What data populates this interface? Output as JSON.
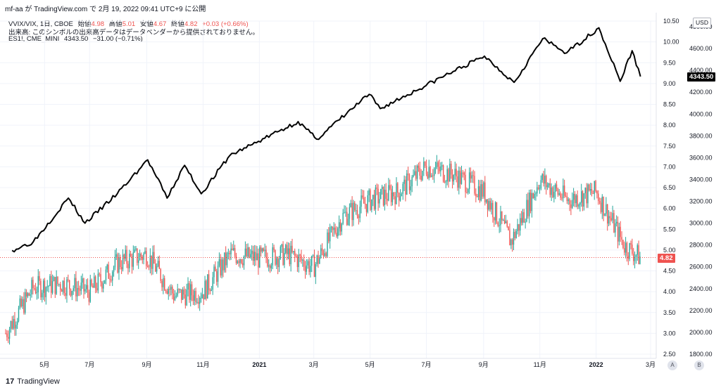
{
  "header": {
    "author": "mf-aa",
    "published_line": "mf-aa が TradingView.com で 2月 19, 2022 09:41 UTC+9 に公開"
  },
  "legend": {
    "vvix": {
      "symbol": "VVIX/VIX, 1日, CBOE",
      "open_label": "始値",
      "open": "4.98",
      "high_label": "高値",
      "high": "5.01",
      "low_label": "安値",
      "low": "4.67",
      "close_label": "終値",
      "close": "4.82",
      "change": "+0.03 (+0.66%)"
    },
    "volume_note": "出来高: このシンボルの出来高データはデータベンダーから提供されておりません。",
    "es": {
      "symbol": "ES1!, CME_MINI",
      "value": "4343.50",
      "change": "−31.00 (−0.71%)"
    }
  },
  "currency_button": "USD",
  "price_tags": {
    "es_last": "4343.50",
    "vvix_last": "4.82"
  },
  "scale_buttons": {
    "a": "A",
    "b": "B"
  },
  "footer": {
    "brand": "TradingView",
    "logo": "17"
  },
  "colors": {
    "up": "#26a69a",
    "down": "#ef5350",
    "line": "#000000",
    "lastline": "#ef5350",
    "grid": "#f0f3fa"
  },
  "chart_data": [
    {
      "type": "candlestick",
      "title": "VVIX/VIX, 1日, CBOE",
      "y_axis": "inner-right",
      "ylim": [
        2.5,
        10.5
      ],
      "y_ticks": [
        "2.50",
        "3.00",
        "3.50",
        "4.00",
        "4.50",
        "5.00",
        "5.50",
        "6.00",
        "6.50",
        "7.00",
        "7.50",
        "8.00",
        "8.50",
        "9.00",
        "9.50",
        "10.00",
        "10.50"
      ],
      "last_value": 4.82,
      "x_ticks": [
        "5月",
        "7月",
        "9月",
        "11月",
        "2021",
        "3月",
        "5月",
        "7月",
        "9月",
        "11月",
        "2022",
        "3月"
      ],
      "x_ticks_bold": [
        "2021",
        "2022"
      ],
      "approx_closes_at_monthly_points": [
        {
          "x": "2020-04",
          "y": 3.0
        },
        {
          "x": "2020-05",
          "y": 4.1
        },
        {
          "x": "2020-06",
          "y": 4.2
        },
        {
          "x": "2020-07",
          "y": 4.0
        },
        {
          "x": "2020-08",
          "y": 4.7
        },
        {
          "x": "2020-09",
          "y": 4.9
        },
        {
          "x": "2020-10",
          "y": 3.9
        },
        {
          "x": "2020-11",
          "y": 4.0
        },
        {
          "x": "2020-12",
          "y": 4.9
        },
        {
          "x": "2021-01",
          "y": 4.8
        },
        {
          "x": "2021-02",
          "y": 4.9
        },
        {
          "x": "2021-03",
          "y": 4.6
        },
        {
          "x": "2021-04",
          "y": 5.8
        },
        {
          "x": "2021-05",
          "y": 6.2
        },
        {
          "x": "2021-06",
          "y": 6.4
        },
        {
          "x": "2021-07",
          "y": 7.0
        },
        {
          "x": "2021-08",
          "y": 6.8
        },
        {
          "x": "2021-09",
          "y": 6.4
        },
        {
          "x": "2021-10",
          "y": 5.2
        },
        {
          "x": "2021-11",
          "y": 6.7
        },
        {
          "x": "2021-12",
          "y": 6.2
        },
        {
          "x": "2022-01",
          "y": 6.4
        },
        {
          "x": "2022-02",
          "y": 5.1
        },
        {
          "x": "2022-02-18",
          "y": 4.82
        }
      ]
    },
    {
      "type": "line",
      "title": "ES1!, CME_MINI",
      "y_axis": "outer-right",
      "ylim": [
        1800,
        4800
      ],
      "y_ticks": [
        "1800.00",
        "2000.00",
        "2200.00",
        "2400.00",
        "2600.00",
        "2800.00",
        "3000.00",
        "3200.00",
        "3400.00",
        "3600.00",
        "3800.00",
        "4000.00",
        "4200.00",
        "4400.00",
        "4600.00",
        "4800.00"
      ],
      "last_value": 4343.5,
      "series": [
        {
          "values": [
            {
              "x": "2020-04-08",
              "y": 2750
            },
            {
              "x": "2020-05-01",
              "y": 2830
            },
            {
              "x": "2020-06-08",
              "y": 3230
            },
            {
              "x": "2020-06-26",
              "y": 3000
            },
            {
              "x": "2020-07-31",
              "y": 3270
            },
            {
              "x": "2020-09-02",
              "y": 3580
            },
            {
              "x": "2020-09-23",
              "y": 3230
            },
            {
              "x": "2020-10-12",
              "y": 3530
            },
            {
              "x": "2020-10-30",
              "y": 3270
            },
            {
              "x": "2020-11-30",
              "y": 3620
            },
            {
              "x": "2020-12-31",
              "y": 3750
            },
            {
              "x": "2021-02-12",
              "y": 3930
            },
            {
              "x": "2021-03-04",
              "y": 3770
            },
            {
              "x": "2021-04-30",
              "y": 4180
            },
            {
              "x": "2021-05-12",
              "y": 4050
            },
            {
              "x": "2021-07-30",
              "y": 4390
            },
            {
              "x": "2021-09-02",
              "y": 4530
            },
            {
              "x": "2021-10-04",
              "y": 4290
            },
            {
              "x": "2021-11-04",
              "y": 4690
            },
            {
              "x": "2021-11-30",
              "y": 4560
            },
            {
              "x": "2022-01-04",
              "y": 4790
            },
            {
              "x": "2022-01-27",
              "y": 4300
            },
            {
              "x": "2022-02-09",
              "y": 4580
            },
            {
              "x": "2022-02-18",
              "y": 4343.5
            }
          ]
        }
      ]
    }
  ]
}
